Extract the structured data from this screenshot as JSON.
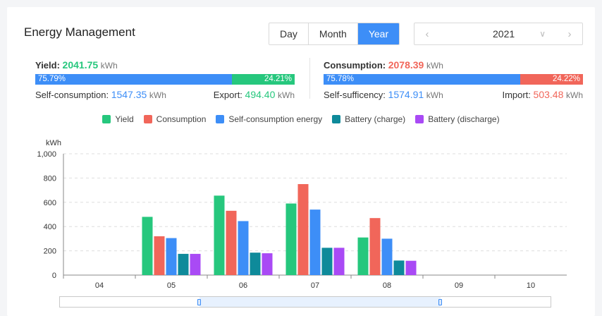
{
  "header": {
    "title": "Energy Management",
    "periods": [
      "Day",
      "Month",
      "Year"
    ],
    "active_period": "Year",
    "year": "2021"
  },
  "yield_panel": {
    "label": "Yield:",
    "value": "2041.75",
    "unit": "kWh",
    "bar_left_pct": "75.79%",
    "bar_right_pct": "24.21%",
    "bar_left_fraction": 0.7579,
    "left_label": "Self-consumption:",
    "left_value": "1547.35",
    "left_unit": "kWh",
    "right_label": "Export:",
    "right_value": "494.40",
    "right_unit": "kWh"
  },
  "consumption_panel": {
    "label": "Consumption:",
    "value": "2078.39",
    "unit": "kWh",
    "bar_left_pct": "75.78%",
    "bar_right_pct": "24.22%",
    "bar_left_fraction": 0.7578,
    "left_label": "Self-sufficency:",
    "left_value": "1574.91",
    "left_unit": "kWh",
    "right_label": "Import:",
    "right_value": "503.48",
    "right_unit": "kWh"
  },
  "colors": {
    "yield": "#26c77d",
    "consumption": "#f1665a",
    "self_consumption": "#3d8ef7",
    "battery_charge": "#0e8a9a",
    "battery_discharge": "#a94af5"
  },
  "chart_data": {
    "type": "bar",
    "ylabel": "kWh",
    "ylim": [
      0,
      1000
    ],
    "yticks": [
      "0",
      "200",
      "400",
      "600",
      "800",
      "1,000"
    ],
    "categories": [
      "04",
      "05",
      "06",
      "07",
      "08",
      "09",
      "10"
    ],
    "grid": true,
    "legend_position": "top-center",
    "series": [
      {
        "name": "Yield",
        "color": "#26c77d",
        "values": [
          0,
          480,
          655,
          590,
          310,
          0,
          0
        ]
      },
      {
        "name": "Consumption",
        "color": "#f1665a",
        "values": [
          0,
          320,
          530,
          750,
          470,
          0,
          0
        ]
      },
      {
        "name": "Self-consumption energy",
        "color": "#3d8ef7",
        "values": [
          0,
          305,
          445,
          540,
          300,
          0,
          0
        ]
      },
      {
        "name": "Battery (charge)",
        "color": "#0e8a9a",
        "values": [
          0,
          175,
          185,
          225,
          120,
          0,
          0
        ]
      },
      {
        "name": "Battery (discharge)",
        "color": "#a94af5",
        "values": [
          0,
          175,
          180,
          225,
          118,
          0,
          0
        ]
      }
    ]
  }
}
